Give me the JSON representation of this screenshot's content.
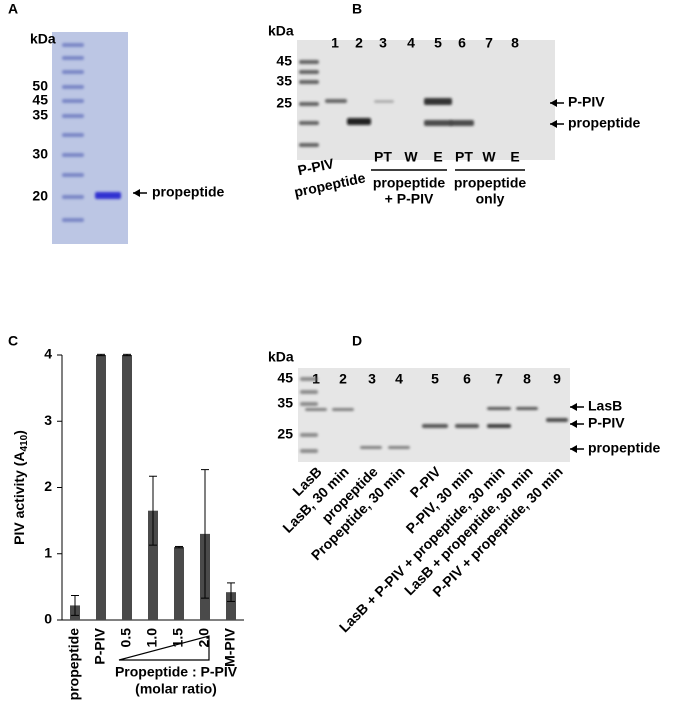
{
  "panels": {
    "A": {
      "label": "A",
      "unit": "kDa",
      "markers": [
        "50",
        "45",
        "35",
        "30",
        "20"
      ],
      "band_label": "propeptide"
    },
    "B": {
      "label": "B",
      "unit": "kDa",
      "lanes": [
        "1",
        "2",
        "3",
        "4",
        "5",
        "6",
        "7",
        "8"
      ],
      "markers": [
        "45",
        "35",
        "25"
      ],
      "bands": [
        "P-PIV",
        "propeptide"
      ],
      "lane_labels": [
        "P-PIV",
        "propeptide"
      ],
      "fractions": [
        "PT",
        "W",
        "E",
        "PT",
        "W",
        "E"
      ],
      "groups": [
        [
          "propeptide",
          "+ P-PIV"
        ],
        [
          "propeptide",
          "only"
        ]
      ]
    },
    "D": {
      "label": "D",
      "unit": "kDa",
      "lanes": [
        "1",
        "2",
        "3",
        "4",
        "5",
        "6",
        "7",
        "8",
        "9"
      ],
      "markers": [
        "45",
        "35",
        "25"
      ],
      "bands": [
        "LasB",
        "P-PIV",
        "propeptide"
      ],
      "lane_labels": [
        "LasB",
        "LasB, 30 min",
        "propeptide",
        "Propeptide, 30 min",
        "P-PIV",
        "P-PIV, 30 min",
        "LasB + P-PIV + propeptide, 30 min",
        "LasB + propeptide, 30 min",
        "P-PIV + propeptide, 30 min"
      ]
    }
  },
  "chart_data": {
    "panel_label": "C",
    "type": "bar",
    "ylabel": "PIV activity (A",
    "ylabel_sub": "410",
    "ylabel_end": ")",
    "xlabel": "Propeptide : P-PIV",
    "xlabel_sub": "(molar ratio)",
    "categories": [
      "propeptide",
      "P-PIV",
      "0.5",
      "1.0",
      "1.5",
      "2.0",
      "M-PIV"
    ],
    "values": [
      0.22,
      4.0,
      4.0,
      1.65,
      1.1,
      1.3,
      0.42
    ],
    "errors": [
      0.15,
      0.01,
      0.01,
      0.52,
      0.01,
      0.97,
      0.14
    ],
    "color": "#4a4a4a",
    "ylim": [
      0,
      4
    ],
    "yticks": [
      0,
      1,
      2,
      3,
      4
    ]
  }
}
